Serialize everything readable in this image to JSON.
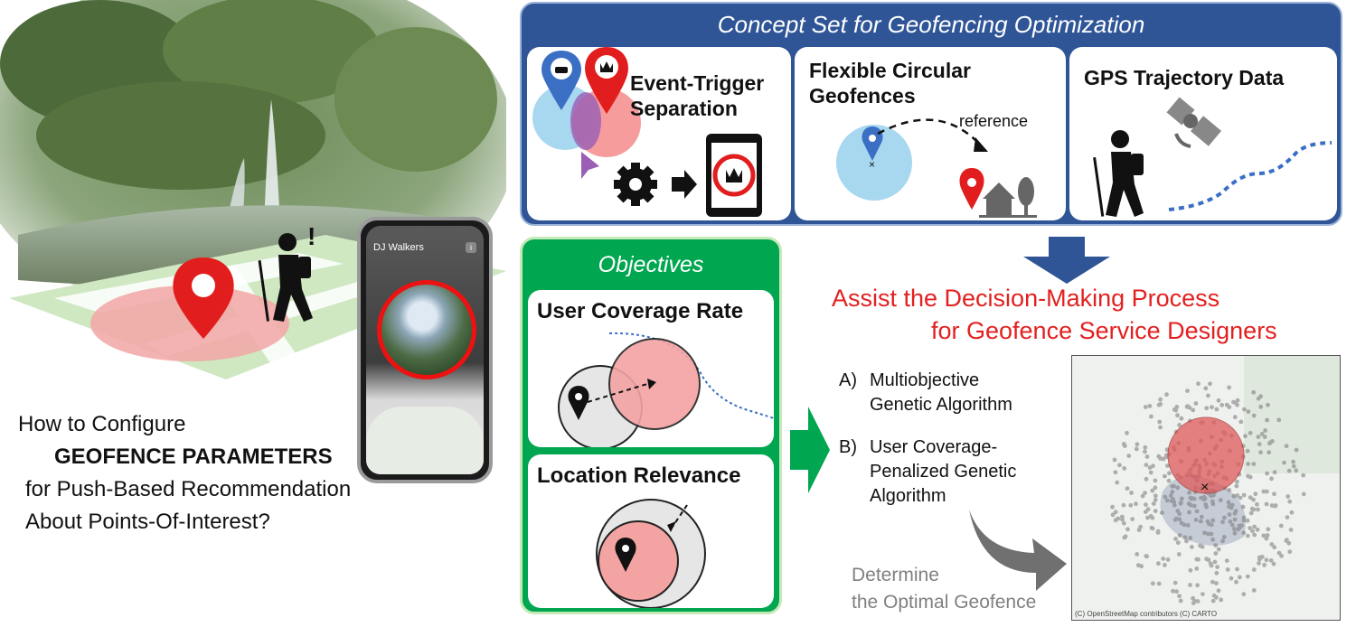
{
  "scene": {
    "phone_app_title": "DJ Walkers",
    "phone_info_glyph": "i",
    "alert_glyph": "!",
    "icons": [
      "map-pin-icon",
      "hiker-icon",
      "fountain-photo"
    ]
  },
  "question": {
    "line1": "How to Configure",
    "line2_emphasis": "GEOFENCE PARAMETERS",
    "line3": "for Push-Based Recommendation",
    "line4": "About Points-Of-Interest?"
  },
  "concept": {
    "title": "Concept Set for Geofencing Optimization",
    "cards": [
      {
        "title_line1": "Event-Trigger",
        "title_line2": "Separation"
      },
      {
        "title_line1": "Flexible Circular",
        "title_line2": "Geofences",
        "annotation": "reference"
      },
      {
        "title_line1": "GPS Trajectory Data"
      }
    ]
  },
  "objectives": {
    "title": "Objectives",
    "items": [
      "User Coverage Rate",
      "Location Relevance"
    ]
  },
  "assist": {
    "line1": "Assist the Decision-Making Process",
    "line2": "for Geofence Service Designers"
  },
  "methods": {
    "a_label": "A)",
    "a_line1": "Multiobjective",
    "a_line2": "Genetic Algorithm",
    "b_label": "B)",
    "b_line1": "User Coverage-",
    "b_line2": "Penalized Genetic",
    "b_line3": "Algorithm"
  },
  "determine": {
    "line1": "Determine",
    "line2": "the Optimal Geofence"
  },
  "map": {
    "credit": "(C) OpenStreetMap contributors (C) CARTO",
    "center_marker": "×"
  },
  "colors": {
    "concept_blue": "#2f5597",
    "objectives_green": "#00a650",
    "assist_red": "#e32020",
    "pin_red": "#e11d1d",
    "pin_blue": "#3a6fc4",
    "geofence_pink": "#f4a3a3",
    "geofence_blue": "#a8d8f0",
    "gray_arrow": "#707070"
  }
}
